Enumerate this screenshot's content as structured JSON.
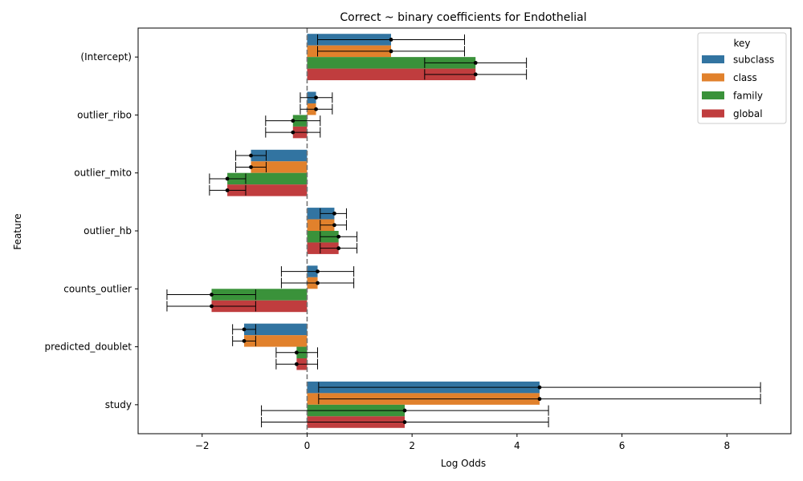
{
  "chart_data": {
    "type": "bar",
    "orientation": "horizontal",
    "title": "Correct ~ binary coefficients for Endothelial",
    "xlabel": "Log Odds",
    "ylabel": "Feature",
    "xlim": [
      -3.22,
      9.22
    ],
    "xticks": [
      -2,
      0,
      2,
      4,
      6,
      8
    ],
    "xtick_labels": [
      "−2",
      "0",
      "2",
      "4",
      "6",
      "8"
    ],
    "reference_line": 0,
    "grid": false,
    "legend_position": "top-right",
    "legend_title": "key",
    "categories": [
      "(Intercept)",
      "outlier_ribo",
      "outlier_mito",
      "outlier_hb",
      "counts_outlier",
      "predicted_doublet",
      "study"
    ],
    "series": [
      {
        "name": "subclass",
        "color": "#3274a1",
        "values": [
          1.6,
          0.17,
          -1.07,
          0.52,
          0.2,
          -1.2,
          4.43
        ],
        "ci_low": [
          0.2,
          -0.13,
          -1.36,
          0.25,
          -0.49,
          -1.42,
          0.22
        ],
        "ci_high": [
          3.0,
          0.48,
          -0.78,
          0.75,
          0.89,
          -0.98,
          8.64
        ]
      },
      {
        "name": "class",
        "color": "#e1812c",
        "values": [
          1.6,
          0.17,
          -1.07,
          0.52,
          0.2,
          -1.2,
          4.43
        ],
        "ci_low": [
          0.2,
          -0.13,
          -1.36,
          0.25,
          -0.49,
          -1.42,
          0.22
        ],
        "ci_high": [
          3.0,
          0.48,
          -0.78,
          0.75,
          0.89,
          -0.98,
          8.64
        ]
      },
      {
        "name": "family",
        "color": "#3a923a",
        "values": [
          3.21,
          -0.27,
          -1.52,
          0.6,
          -1.82,
          -0.2,
          1.86
        ],
        "ci_low": [
          2.24,
          -0.79,
          -1.86,
          0.25,
          -2.67,
          -0.59,
          -0.87
        ],
        "ci_high": [
          4.18,
          0.25,
          -1.17,
          0.95,
          -0.98,
          0.2,
          4.6
        ]
      },
      {
        "name": "global",
        "color": "#c03d3e",
        "values": [
          3.21,
          -0.27,
          -1.52,
          0.6,
          -1.82,
          -0.2,
          1.86
        ],
        "ci_low": [
          2.24,
          -0.79,
          -1.86,
          0.25,
          -2.67,
          -0.59,
          -0.87
        ],
        "ci_high": [
          4.18,
          0.25,
          -1.17,
          0.95,
          -0.98,
          0.2,
          4.6
        ]
      }
    ]
  }
}
